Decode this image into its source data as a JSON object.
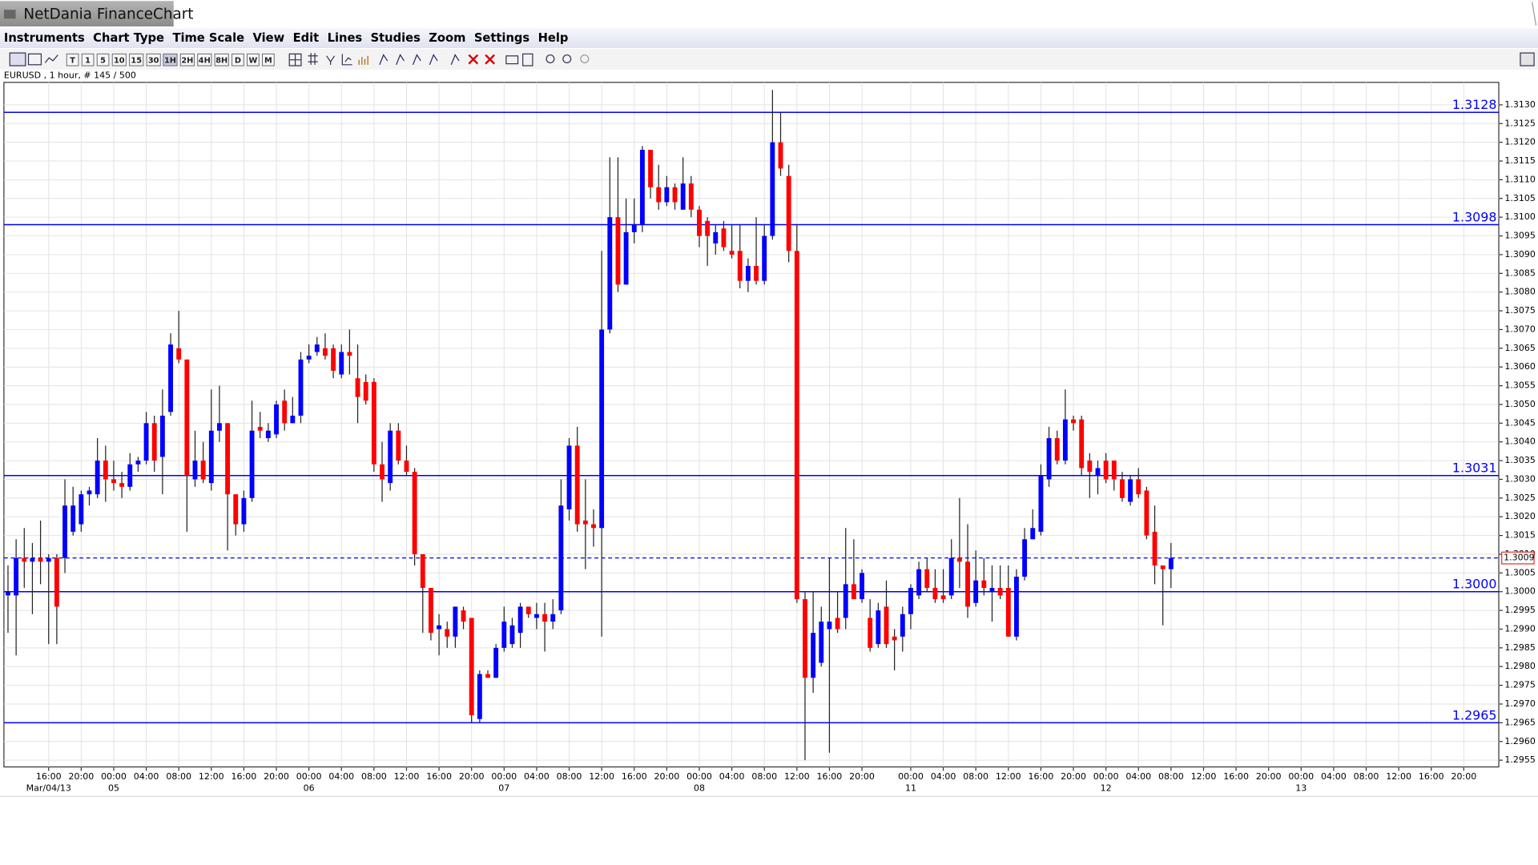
{
  "window": {
    "title": "NetDania FinanceChart"
  },
  "menu": [
    "Instruments",
    "Chart Type",
    "Time Scale",
    "View",
    "Edit",
    "Lines",
    "Studies",
    "Zoom",
    "Settings",
    "Help"
  ],
  "toolbar": [
    "T",
    "1",
    "5",
    "10",
    "15",
    "30",
    "1H",
    "2H",
    "4H",
    "8H",
    "D",
    "W",
    "M"
  ],
  "chart_info": "EURUSD , 1 hour, # 145 / 500",
  "chart_data": {
    "type": "candlestick",
    "up_color": "#0000ff",
    "down_color": "#ff0000",
    "level_color": "#0000ff",
    "grid": true,
    "xlim": [
      -0.5,
      183.3
    ],
    "ylim": [
      1.29532,
      1.3136
    ],
    "yticks": [
      1.2955,
      {
        "value": 1.296,
        "label": "1.2960"
      },
      1.2965,
      {
        "value": 1.297,
        "label": "1.2970"
      },
      1.2975,
      {
        "value": 1.298,
        "label": "1.2980"
      },
      1.2985,
      {
        "value": 1.299,
        "label": "1.2990"
      },
      1.2995,
      {
        "value": 1.3,
        "label": "1.3000"
      },
      1.3005,
      {
        "value": 1.301,
        "label": "1.3010"
      },
      1.3015,
      {
        "value": 1.302,
        "label": "1.3020"
      },
      1.3025,
      {
        "value": 1.303,
        "label": "1.3030"
      },
      1.3035,
      {
        "value": 1.304,
        "label": "1.3040"
      },
      1.3045,
      {
        "value": 1.305,
        "label": "1.3050"
      },
      1.3055,
      {
        "value": 1.306,
        "label": "1.3060"
      },
      1.3065,
      {
        "value": 1.307,
        "label": "1.3070"
      },
      1.3075,
      {
        "value": 1.308,
        "label": "1.3080"
      },
      1.3085,
      {
        "value": 1.309,
        "label": "1.3090"
      },
      1.3095,
      {
        "value": 1.31,
        "label": "1.3100"
      },
      1.3105,
      {
        "value": 1.311,
        "label": "1.3110"
      },
      1.3115,
      {
        "value": 1.312,
        "label": "1.3120"
      },
      1.3125,
      {
        "value": 1.313,
        "label": "1.3130"
      }
    ],
    "xticks": [
      {
        "value": 5,
        "label": "16:00"
      },
      {
        "value": 9,
        "label": "20:00"
      },
      {
        "value": 13,
        "label": "00:00"
      },
      {
        "value": 17,
        "label": "04:00"
      },
      {
        "value": 21,
        "label": "08:00"
      },
      {
        "value": 25,
        "label": "12:00"
      },
      {
        "value": 29,
        "label": "16:00"
      },
      {
        "value": 33,
        "label": "20:00"
      },
      {
        "value": 37,
        "label": "00:00"
      },
      {
        "value": 41,
        "label": "04:00"
      },
      {
        "value": 45,
        "label": "08:00"
      },
      {
        "value": 49,
        "label": "12:00"
      },
      {
        "value": 53,
        "label": "16:00"
      },
      {
        "value": 57,
        "label": "20:00"
      },
      {
        "value": 61,
        "label": "00:00"
      },
      {
        "value": 65,
        "label": "04:00"
      },
      {
        "value": 69,
        "label": "08:00"
      },
      {
        "value": 73,
        "label": "12:00"
      },
      {
        "value": 77,
        "label": "16:00"
      },
      {
        "value": 81,
        "label": "20:00"
      },
      {
        "value": 85,
        "label": "00:00"
      },
      {
        "value": 89,
        "label": "04:00"
      },
      {
        "value": 93,
        "label": "08:00"
      },
      {
        "value": 97,
        "label": "12:00"
      },
      {
        "value": 101,
        "label": "16:00"
      },
      {
        "value": 105,
        "label": "20:00"
      },
      {
        "value": 111,
        "label": "00:00"
      },
      {
        "value": 115,
        "label": "04:00"
      },
      {
        "value": 119,
        "label": "08:00"
      },
      {
        "value": 123,
        "label": "12:00"
      },
      {
        "value": 127,
        "label": "16:00"
      },
      {
        "value": 131,
        "label": "20:00"
      },
      {
        "value": 135,
        "label": "00:00"
      },
      {
        "value": 139,
        "label": "04:00"
      },
      {
        "value": 143,
        "label": "08:00"
      },
      {
        "value": 147,
        "label": "12:00"
      },
      {
        "value": 151,
        "label": "16:00"
      },
      {
        "value": 155,
        "label": "20:00"
      },
      {
        "value": 159,
        "label": "00:00"
      },
      {
        "value": 163,
        "label": "04:00"
      },
      {
        "value": 167,
        "label": "08:00"
      },
      {
        "value": 171,
        "label": "12:00"
      },
      {
        "value": 175,
        "label": "16:00"
      },
      {
        "value": 179,
        "label": "20:00"
      }
    ],
    "date_ticks": [
      {
        "value": 5,
        "label": "Mar/04/13"
      },
      {
        "value": 13,
        "label": "05"
      },
      {
        "value": 37,
        "label": "06"
      },
      {
        "value": 61,
        "label": "07"
      },
      {
        "value": 85,
        "label": "08"
      },
      {
        "value": 111,
        "label": "11"
      },
      {
        "value": 135,
        "label": "12"
      },
      {
        "value": 159,
        "label": "13"
      }
    ],
    "levels": [
      1.3128,
      1.3098,
      1.3031,
      {
        "value": 1.3,
        "label": "1.3000"
      },
      1.2965
    ],
    "last_price": 1.3009,
    "open": [
      1.2999,
      1.2999,
      1.3009,
      1.3008,
      1.3009,
      1.3008,
      1.3009,
      1.3009,
      1.3016,
      1.3018,
      1.3026,
      1.3026,
      1.3035,
      1.303,
      1.3029,
      1.3028,
      1.3034,
      1.3035,
      1.3045,
      1.3036,
      1.3048,
      1.3065,
      1.3062,
      1.303,
      1.3035,
      1.3029,
      1.3043,
      1.3045,
      1.3026,
      1.3018,
      1.3025,
      1.3044,
      1.3041,
      1.3042,
      1.3051,
      1.3045,
      1.3047,
      1.3062,
      1.3064,
      1.3065,
      1.3065,
      1.3058,
      1.3064,
      1.3057,
      1.3056,
      1.3056,
      1.3034,
      1.3029,
      1.3043,
      1.3035,
      1.3032,
      1.301,
      1.3001,
      1.299,
      1.299,
      1.2988,
      1.2995,
      1.2993,
      1.2966,
      1.2978,
      1.2977,
      1.2985,
      1.2986,
      1.2989,
      1.2996,
      1.2993,
      1.2994,
      1.2992,
      1.2995,
      1.3022,
      1.3039,
      1.3019,
      1.3018,
      1.3017,
      1.307,
      1.31,
      1.3082,
      1.3096,
      1.3098,
      1.3118,
      1.3108,
      1.3104,
      1.3108,
      1.3102,
      1.3109,
      1.3102,
      1.3099,
      1.3093,
      1.3097,
      1.3091,
      1.3091,
      1.3083,
      1.3087,
      1.3083,
      1.3095,
      1.312,
      1.3111,
      1.3091,
      1.2998,
      1.2977,
      1.2981,
      1.299,
      1.2993,
      1.2993,
      1.3002,
      1.2998,
      1.2993,
      1.2986,
      1.2996,
      1.2988,
      1.2988,
      1.2994,
      1.2999,
      1.3006,
      1.3001,
      1.2999,
      1.2999,
      1.3009,
      1.3008,
      1.2997,
      1.3003,
      1.3,
      1.3001,
      1.3001,
      1.2988,
      1.3004,
      1.3014,
      1.3016,
      1.303,
      1.3041,
      1.3035,
      1.3046,
      1.3046,
      1.3035,
      1.3031,
      1.3035,
      1.3035,
      1.303,
      1.3024,
      1.303,
      1.3027,
      1.3016,
      1.3007,
      1.3006
    ],
    "high": [
      1.3007,
      1.3014,
      1.3017,
      1.3013,
      1.3019,
      1.301,
      1.301,
      1.303,
      1.3028,
      1.3027,
      1.3028,
      1.3041,
      1.3039,
      1.3035,
      1.3032,
      1.3037,
      1.3036,
      1.3048,
      1.3047,
      1.3054,
      1.3069,
      1.3075,
      1.3062,
      1.3043,
      1.304,
      1.3054,
      1.3055,
      1.3045,
      1.3026,
      1.3027,
      1.3051,
      1.3048,
      1.3045,
      1.3051,
      1.3054,
      1.3052,
      1.3064,
      1.3066,
      1.3068,
      1.3069,
      1.3066,
      1.3066,
      1.307,
      1.3066,
      1.3058,
      1.3057,
      1.304,
      1.3045,
      1.3045,
      1.3039,
      1.3033,
      1.301,
      1.3001,
      1.2994,
      1.2992,
      1.2996,
      1.2996,
      1.2993,
      1.2979,
      1.2979,
      1.2986,
      1.2996,
      1.2993,
      1.2997,
      1.2996,
      1.2997,
      1.2997,
      1.2998,
      1.303,
      1.3041,
      1.3044,
      1.303,
      1.3022,
      1.3091,
      1.3116,
      1.3116,
      1.3105,
      1.3105,
      1.3119,
      1.3118,
      1.3114,
      1.3111,
      1.3109,
      1.3116,
      1.3111,
      1.3103,
      1.31,
      1.3098,
      1.3099,
      1.3098,
      1.3098,
      1.3089,
      1.31,
      1.3098,
      1.3134,
      1.3128,
      1.3114,
      1.3098,
      1.3,
      1.3,
      1.2996,
      1.3009,
      1.3,
      1.3017,
      1.3014,
      1.3006,
      1.2998,
      1.2997,
      1.3003,
      1.299,
      1.2996,
      1.3002,
      1.3008,
      1.3009,
      1.3006,
      1.3006,
      1.3014,
      1.3025,
      1.3018,
      1.3011,
      1.3009,
      1.3007,
      1.3007,
      1.3007,
      1.3006,
      1.3017,
      1.3022,
      1.3034,
      1.3044,
      1.3043,
      1.3054,
      1.3047,
      1.3047,
      1.3037,
      1.3035,
      1.3037,
      1.3035,
      1.3032,
      1.3031,
      1.3033,
      1.3028,
      1.3023,
      1.3007,
      1.3013
    ],
    "low": [
      1.2989,
      1.2983,
      1.3001,
      1.2994,
      1.3002,
      1.2986,
      1.2986,
      1.3005,
      1.3015,
      1.3016,
      1.3023,
      1.3025,
      1.3024,
      1.3027,
      1.3025,
      1.3027,
      1.3032,
      1.3034,
      1.3032,
      1.3026,
      1.3047,
      1.3061,
      1.3016,
      1.3028,
      1.3029,
      1.3027,
      1.304,
      1.3011,
      1.3015,
      1.3016,
      1.3024,
      1.3041,
      1.304,
      1.3041,
      1.3043,
      1.3045,
      1.3045,
      1.3061,
      1.3063,
      1.3062,
      1.3057,
      1.3057,
      1.3058,
      1.3045,
      1.305,
      1.3032,
      1.3024,
      1.3027,
      1.3034,
      1.3031,
      1.3007,
      1.2989,
      1.2987,
      1.2983,
      1.2985,
      1.2985,
      1.299,
      1.2965,
      1.2965,
      1.2977,
      1.2977,
      1.2984,
      1.2985,
      1.2985,
      1.2993,
      1.299,
      1.2984,
      1.299,
      1.2994,
      1.3019,
      1.3016,
      1.3006,
      1.3012,
      1.2988,
      1.3069,
      1.308,
      1.3082,
      1.3093,
      1.3096,
      1.3105,
      1.3102,
      1.3103,
      1.3102,
      1.3102,
      1.31,
      1.3092,
      1.3087,
      1.309,
      1.3091,
      1.3089,
      1.3081,
      1.308,
      1.3082,
      1.3082,
      1.3094,
      1.3111,
      1.3088,
      1.2997,
      1.2955,
      1.2973,
      1.298,
      1.2957,
      1.2989,
      1.299,
      1.2998,
      1.2997,
      1.2984,
      1.2985,
      1.2985,
      1.2979,
      1.2984,
      1.299,
      1.2998,
      1.3,
      1.2997,
      1.2997,
      1.2998,
      1.3001,
      1.2993,
      1.2996,
      1.2999,
      1.2992,
      1.2998,
      1.2988,
      1.2987,
      1.3003,
      1.3014,
      1.3015,
      1.3028,
      1.3034,
      1.3034,
      1.3043,
      1.3031,
      1.3025,
      1.3026,
      1.3029,
      1.3027,
      1.3024,
      1.3023,
      1.3025,
      1.3014,
      1.3002,
      1.2991,
      1.3001
    ],
    "close": [
      1.3,
      1.3009,
      1.3008,
      1.3009,
      1.3008,
      1.3009,
      1.2996,
      1.3023,
      1.3023,
      1.3026,
      1.3027,
      1.3035,
      1.303,
      1.3029,
      1.3028,
      1.3034,
      1.3035,
      1.3045,
      1.3035,
      1.3047,
      1.3066,
      1.3062,
      1.3031,
      1.3035,
      1.303,
      1.3043,
      1.3045,
      1.3026,
      1.3018,
      1.3025,
      1.3043,
      1.3043,
      1.3043,
      1.305,
      1.3045,
      1.3047,
      1.3062,
      1.3063,
      1.3066,
      1.3063,
      1.3059,
      1.3064,
      1.3063,
      1.3052,
      1.3051,
      1.3034,
      1.303,
      1.3043,
      1.3035,
      1.3032,
      1.301,
      1.3001,
      1.2989,
      1.2991,
      1.2988,
      1.2996,
      1.2992,
      1.2967,
      1.2978,
      1.2977,
      1.2985,
      1.2992,
      1.2991,
      1.2996,
      1.2994,
      1.2994,
      1.2992,
      1.2994,
      1.3023,
      1.3039,
      1.3018,
      1.3018,
      1.3017,
      1.307,
      1.31,
      1.3082,
      1.3096,
      1.3098,
      1.3118,
      1.3108,
      1.3104,
      1.3108,
      1.3104,
      1.3109,
      1.3102,
      1.3095,
      1.3095,
      1.3096,
      1.3092,
      1.309,
      1.3083,
      1.3087,
      1.3083,
      1.3095,
      1.312,
      1.3113,
      1.3091,
      1.2998,
      1.2977,
      1.2989,
      1.2992,
      1.2992,
      1.299,
      1.3002,
      1.2998,
      1.3005,
      1.2985,
      1.2995,
      1.2986,
      1.2987,
      1.2994,
      1.3001,
      1.3006,
      1.3001,
      1.2998,
      1.2998,
      1.3009,
      1.3008,
      1.2996,
      1.3003,
      1.3001,
      1.3001,
      1.2999,
      1.2988,
      1.3004,
      1.3014,
      1.3017,
      1.3031,
      1.3041,
      1.3035,
      1.3046,
      1.3045,
      1.3033,
      1.3032,
      1.3033,
      1.303,
      1.303,
      1.3025,
      1.303,
      1.3026,
      1.3015,
      1.3007,
      1.3006,
      1.3009
    ]
  }
}
